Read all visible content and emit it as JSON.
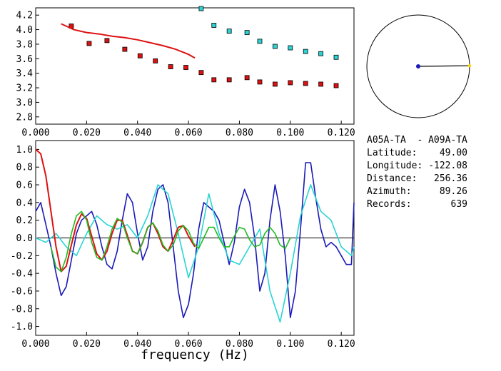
{
  "chart_data": [
    {
      "type": "scatter",
      "xlim": [
        0.0,
        0.125
      ],
      "ylim": [
        2.7,
        4.3
      ],
      "x_ticks": [
        "0.000",
        "0.020",
        "0.040",
        "0.060",
        "0.080",
        "0.100",
        "0.120"
      ],
      "y_ticks": [
        "2.8",
        "3.0",
        "3.2",
        "3.4",
        "3.6",
        "3.8",
        "4.0",
        "4.2"
      ],
      "series": [
        {
          "kind": "square-markers",
          "color": "#dd1111",
          "points": [
            [
              0.014,
              4.05
            ],
            [
              0.021,
              3.81
            ],
            [
              0.028,
              3.85
            ],
            [
              0.035,
              3.73
            ],
            [
              0.041,
              3.64
            ],
            [
              0.047,
              3.57
            ],
            [
              0.053,
              3.49
            ],
            [
              0.059,
              3.48
            ],
            [
              0.065,
              3.41
            ],
            [
              0.07,
              3.31
            ],
            [
              0.076,
              3.31
            ],
            [
              0.083,
              3.34
            ],
            [
              0.088,
              3.28
            ],
            [
              0.094,
              3.25
            ],
            [
              0.1,
              3.27
            ],
            [
              0.106,
              3.26
            ],
            [
              0.112,
              3.25
            ],
            [
              0.118,
              3.23
            ]
          ]
        },
        {
          "kind": "square-markers",
          "color": "#2ad4d4",
          "points": [
            [
              0.065,
              4.29
            ],
            [
              0.07,
              4.06
            ],
            [
              0.076,
              3.98
            ],
            [
              0.083,
              3.96
            ],
            [
              0.088,
              3.84
            ],
            [
              0.094,
              3.77
            ],
            [
              0.1,
              3.75
            ],
            [
              0.106,
              3.7
            ],
            [
              0.112,
              3.67
            ],
            [
              0.118,
              3.62
            ]
          ]
        },
        {
          "kind": "line",
          "color": "#dd1111",
          "points": [
            [
              0.01,
              4.08
            ],
            [
              0.015,
              4.0
            ],
            [
              0.02,
              3.96
            ],
            [
              0.025,
              3.94
            ],
            [
              0.03,
              3.91
            ],
            [
              0.035,
              3.89
            ],
            [
              0.04,
              3.86
            ],
            [
              0.045,
              3.82
            ],
            [
              0.05,
              3.78
            ],
            [
              0.055,
              3.73
            ],
            [
              0.06,
              3.66
            ],
            [
              0.0625,
              3.61
            ]
          ]
        }
      ]
    },
    {
      "type": "line",
      "xlabel": "frequency (Hz)",
      "xlim": [
        0.0,
        0.125
      ],
      "ylim": [
        -1.1,
        1.1
      ],
      "x_ticks": [
        "0.000",
        "0.020",
        "0.040",
        "0.060",
        "0.080",
        "0.100",
        "0.120"
      ],
      "y_ticks": [
        "1.0",
        "0.8",
        "0.6",
        "0.4",
        "0.2",
        "0.0",
        "-0.2",
        "-0.4",
        "-0.6",
        "-0.8",
        "-1.0"
      ],
      "series": [
        {
          "color": "#1a1ab8",
          "x": [
            0.0,
            0.002,
            0.004,
            0.006,
            0.008,
            0.01,
            0.012,
            0.014,
            0.016,
            0.018,
            0.02,
            0.022,
            0.024,
            0.026,
            0.028,
            0.03,
            0.032,
            0.034,
            0.036,
            0.038,
            0.04,
            0.042,
            0.044,
            0.046,
            0.048,
            0.05,
            0.052,
            0.054,
            0.056,
            0.058,
            0.06,
            0.062,
            0.064,
            0.066,
            0.068,
            0.07,
            0.072,
            0.074,
            0.076,
            0.078,
            0.08,
            0.082,
            0.084,
            0.086,
            0.088,
            0.09,
            0.092,
            0.094,
            0.096,
            0.098,
            0.1,
            0.102,
            0.104,
            0.106,
            0.108,
            0.11,
            0.112,
            0.114,
            0.116,
            0.118,
            0.12,
            0.122,
            0.124,
            0.125
          ],
          "y": [
            0.3,
            0.4,
            0.15,
            -0.1,
            -0.4,
            -0.65,
            -0.55,
            -0.25,
            0.05,
            0.2,
            0.25,
            0.3,
            0.15,
            -0.1,
            -0.3,
            -0.35,
            -0.15,
            0.2,
            0.5,
            0.4,
            0.05,
            -0.25,
            -0.1,
            0.3,
            0.55,
            0.6,
            0.4,
            -0.1,
            -0.6,
            -0.9,
            -0.75,
            -0.4,
            0.1,
            0.4,
            0.35,
            0.3,
            0.2,
            -0.05,
            -0.3,
            -0.05,
            0.35,
            0.55,
            0.4,
            0.0,
            -0.6,
            -0.4,
            0.2,
            0.6,
            0.3,
            -0.2,
            -0.9,
            -0.6,
            0.1,
            0.85,
            0.85,
            0.45,
            0.1,
            -0.1,
            -0.05,
            -0.1,
            -0.2,
            -0.3,
            -0.3,
            0.4
          ]
        },
        {
          "color": "#2ad4d4",
          "x": [
            0.0,
            0.004,
            0.008,
            0.012,
            0.016,
            0.02,
            0.024,
            0.028,
            0.032,
            0.036,
            0.04,
            0.044,
            0.048,
            0.052,
            0.056,
            0.06,
            0.064,
            0.068,
            0.072,
            0.076,
            0.08,
            0.084,
            0.088,
            0.092,
            0.096,
            0.1,
            0.104,
            0.108,
            0.112,
            0.116,
            0.12,
            0.124,
            0.125
          ],
          "y": [
            0.0,
            -0.05,
            0.05,
            -0.1,
            -0.2,
            0.05,
            0.25,
            0.15,
            0.1,
            0.15,
            0.0,
            0.25,
            0.6,
            0.5,
            0.05,
            -0.45,
            -0.1,
            0.5,
            0.05,
            -0.25,
            -0.3,
            -0.1,
            0.1,
            -0.6,
            -0.95,
            -0.4,
            0.25,
            0.6,
            0.3,
            0.2,
            -0.1,
            -0.2,
            -0.1
          ]
        },
        {
          "color": "#dd1111",
          "x": [
            0.0,
            0.002,
            0.004,
            0.006,
            0.008,
            0.01,
            0.012,
            0.014,
            0.016,
            0.018,
            0.02,
            0.022,
            0.024,
            0.026,
            0.028,
            0.03,
            0.032,
            0.034,
            0.036,
            0.038,
            0.04,
            0.042,
            0.044,
            0.046,
            0.048,
            0.05,
            0.052,
            0.054,
            0.056,
            0.058,
            0.06,
            0.0625
          ],
          "y": [
            1.0,
            0.95,
            0.7,
            0.3,
            -0.1,
            -0.38,
            -0.32,
            -0.08,
            0.15,
            0.27,
            0.22,
            0.02,
            -0.18,
            -0.25,
            -0.15,
            0.05,
            0.2,
            0.2,
            0.03,
            -0.15,
            -0.18,
            -0.05,
            0.12,
            0.17,
            0.05,
            -0.1,
            -0.15,
            -0.02,
            0.12,
            0.14,
            0.02,
            -0.1
          ]
        },
        {
          "color": "#22bb22",
          "x": [
            0.006,
            0.008,
            0.01,
            0.012,
            0.014,
            0.016,
            0.018,
            0.02,
            0.022,
            0.024,
            0.026,
            0.028,
            0.03,
            0.032,
            0.034,
            0.036,
            0.038,
            0.04,
            0.042,
            0.044,
            0.046,
            0.048,
            0.05,
            0.052,
            0.054,
            0.056,
            0.058,
            0.06,
            0.062,
            0.064,
            0.066,
            0.068,
            0.07,
            0.072,
            0.074,
            0.076,
            0.078,
            0.08,
            0.082,
            0.084,
            0.086,
            0.088,
            0.09,
            0.092,
            0.094,
            0.096,
            0.098,
            0.1
          ],
          "y": [
            -0.1,
            -0.33,
            -0.38,
            -0.22,
            0.05,
            0.25,
            0.3,
            0.2,
            -0.05,
            -0.22,
            -0.25,
            -0.1,
            0.1,
            0.22,
            0.18,
            0.0,
            -0.15,
            -0.18,
            -0.05,
            0.12,
            0.17,
            0.08,
            -0.08,
            -0.15,
            -0.08,
            0.08,
            0.14,
            0.08,
            -0.06,
            -0.12,
            0.0,
            0.12,
            0.12,
            0.0,
            -0.1,
            -0.1,
            0.02,
            0.12,
            0.1,
            -0.02,
            -0.1,
            -0.08,
            0.05,
            0.12,
            0.05,
            -0.08,
            -0.12,
            0.0
          ]
        }
      ]
    }
  ],
  "map": {
    "center_color": "#1a1ab8",
    "end_color": "#ffd200",
    "azimuth_deg": 89.26
  },
  "info": {
    "title": "A05A-TA  - A09A-TA",
    "rows": [
      {
        "label": "Latitude:",
        "value": "49.00"
      },
      {
        "label": "Longitude:",
        "value": "-122.08"
      },
      {
        "label": "Distance:",
        "value": "256.36"
      },
      {
        "label": "Azimuth:",
        "value": "89.26"
      },
      {
        "label": "Records:",
        "value": "639"
      }
    ]
  }
}
